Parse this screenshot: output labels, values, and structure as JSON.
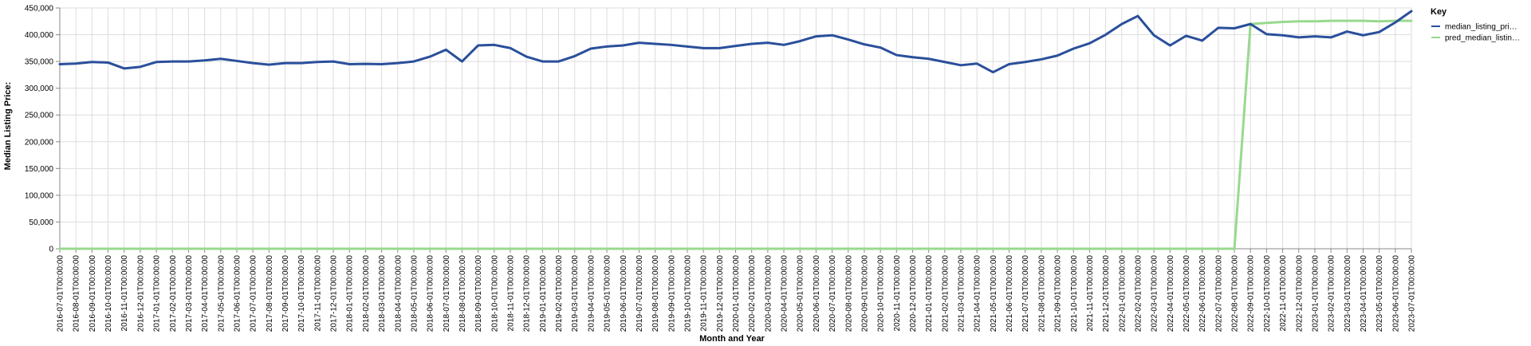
{
  "chart_data": {
    "type": "line",
    "xlabel": "Month and Year",
    "ylabel": "Median Listing Price:",
    "ylim": [
      0,
      450000
    ],
    "y_ticks": [
      0,
      50000,
      100000,
      150000,
      200000,
      250000,
      300000,
      350000,
      400000,
      450000
    ],
    "y_tick_labels": [
      "0",
      "50,000",
      "100,000",
      "150,000",
      "200,000",
      "250,000",
      "300,000",
      "350,000",
      "400,000",
      "450,000"
    ],
    "grid": true,
    "legend": {
      "title": "Key",
      "placement": "top-right"
    },
    "categories": [
      "2016-07-01T00:00:00",
      "2016-08-01T00:00:00",
      "2016-09-01T00:00:00",
      "2016-10-01T00:00:00",
      "2016-11-01T00:00:00",
      "2016-12-01T00:00:00",
      "2017-01-01T00:00:00",
      "2017-02-01T00:00:00",
      "2017-03-01T00:00:00",
      "2017-04-01T00:00:00",
      "2017-05-01T00:00:00",
      "2017-06-01T00:00:00",
      "2017-07-01T00:00:00",
      "2017-08-01T00:00:00",
      "2017-09-01T00:00:00",
      "2017-10-01T00:00:00",
      "2017-11-01T00:00:00",
      "2017-12-01T00:00:00",
      "2018-01-01T00:00:00",
      "2018-02-01T00:00:00",
      "2018-03-01T00:00:00",
      "2018-04-01T00:00:00",
      "2018-05-01T00:00:00",
      "2018-06-01T00:00:00",
      "2018-07-01T00:00:00",
      "2018-08-01T00:00:00",
      "2018-09-01T00:00:00",
      "2018-10-01T00:00:00",
      "2018-11-01T00:00:00",
      "2018-12-01T00:00:00",
      "2019-01-01T00:00:00",
      "2019-02-01T00:00:00",
      "2019-03-01T00:00:00",
      "2019-04-01T00:00:00",
      "2019-05-01T00:00:00",
      "2019-06-01T00:00:00",
      "2019-07-01T00:00:00",
      "2019-08-01T00:00:00",
      "2019-09-01T00:00:00",
      "2019-10-01T00:00:00",
      "2019-11-01T00:00:00",
      "2019-12-01T00:00:00",
      "2020-01-01T00:00:00",
      "2020-02-01T00:00:00",
      "2020-03-01T00:00:00",
      "2020-04-01T00:00:00",
      "2020-05-01T00:00:00",
      "2020-06-01T00:00:00",
      "2020-07-01T00:00:00",
      "2020-08-01T00:00:00",
      "2020-09-01T00:00:00",
      "2020-10-01T00:00:00",
      "2020-11-01T00:00:00",
      "2020-12-01T00:00:00",
      "2021-01-01T00:00:00",
      "2021-02-01T00:00:00",
      "2021-03-01T00:00:00",
      "2021-04-01T00:00:00",
      "2021-05-01T00:00:00",
      "2021-06-01T00:00:00",
      "2021-07-01T00:00:00",
      "2021-08-01T00:00:00",
      "2021-09-01T00:00:00",
      "2021-10-01T00:00:00",
      "2021-11-01T00:00:00",
      "2021-12-01T00:00:00",
      "2022-01-01T00:00:00",
      "2022-02-01T00:00:00",
      "2022-03-01T00:00:00",
      "2022-04-01T00:00:00",
      "2022-05-01T00:00:00",
      "2022-06-01T00:00:00",
      "2022-07-01T00:00:00",
      "2022-08-01T00:00:00",
      "2022-09-01T00:00:00",
      "2022-10-01T00:00:00",
      "2022-11-01T00:00:00",
      "2022-12-01T00:00:00",
      "2023-01-01T00:00:00",
      "2023-02-01T00:00:00",
      "2023-03-01T00:00:00",
      "2023-04-01T00:00:00",
      "2023-05-01T00:00:00",
      "2023-06-01T00:00:00",
      "2023-07-01T00:00:00"
    ],
    "series": [
      {
        "name": "median_listing_pri…",
        "color": "#2a4f9b",
        "values": [
          345000,
          346000,
          349000,
          348000,
          337000,
          340000,
          349000,
          350000,
          350000,
          352000,
          355000,
          351000,
          347000,
          344000,
          347000,
          347000,
          349000,
          350000,
          345000,
          345500,
          345000,
          347000,
          350000,
          359000,
          372000,
          350000,
          380000,
          381000,
          375000,
          359000,
          350000,
          350000,
          360000,
          374000,
          378000,
          380000,
          385000,
          383000,
          381000,
          378000,
          375000,
          375000,
          379000,
          383000,
          385000,
          381000,
          388000,
          397000,
          399000,
          391000,
          382000,
          376000,
          362000,
          358000,
          355000,
          349000,
          343000,
          346000,
          330000,
          345000,
          349000,
          354000,
          361000,
          374000,
          384000,
          400000,
          420000,
          435000,
          399000,
          380000,
          398000,
          389000,
          413000,
          412000,
          420000,
          401000,
          399000,
          395000,
          397000,
          395000,
          406000,
          399000,
          405000,
          423000,
          444000
        ]
      },
      {
        "name": "pred_median_listin…",
        "color": "#98d98e",
        "values": [
          0,
          0,
          0,
          0,
          0,
          0,
          0,
          0,
          0,
          0,
          0,
          0,
          0,
          0,
          0,
          0,
          0,
          0,
          0,
          0,
          0,
          0,
          0,
          0,
          0,
          0,
          0,
          0,
          0,
          0,
          0,
          0,
          0,
          0,
          0,
          0,
          0,
          0,
          0,
          0,
          0,
          0,
          0,
          0,
          0,
          0,
          0,
          0,
          0,
          0,
          0,
          0,
          0,
          0,
          0,
          0,
          0,
          0,
          0,
          0,
          0,
          0,
          0,
          0,
          0,
          0,
          0,
          0,
          0,
          0,
          0,
          0,
          0,
          0,
          420000,
          422000,
          424000,
          425000,
          425000,
          426000,
          426000,
          426000,
          425000,
          426000,
          426000
        ]
      }
    ]
  }
}
